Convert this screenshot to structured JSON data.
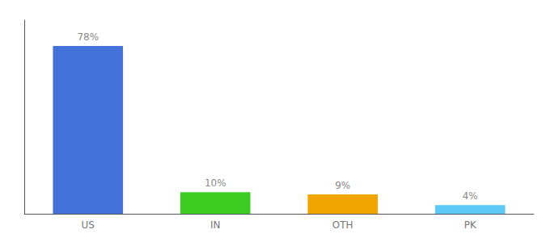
{
  "chart_data": {
    "type": "bar",
    "categories": [
      "US",
      "IN",
      "OTH",
      "PK"
    ],
    "values": [
      78,
      10,
      9,
      4
    ],
    "value_labels": [
      "78%",
      "10%",
      "9%",
      "4%"
    ],
    "colors": [
      "#4472db",
      "#3dcc22",
      "#f0a500",
      "#5bc8f5"
    ],
    "ylim": [
      0,
      90
    ],
    "grid": false,
    "tick_labels": "x",
    "data_labels": true
  }
}
